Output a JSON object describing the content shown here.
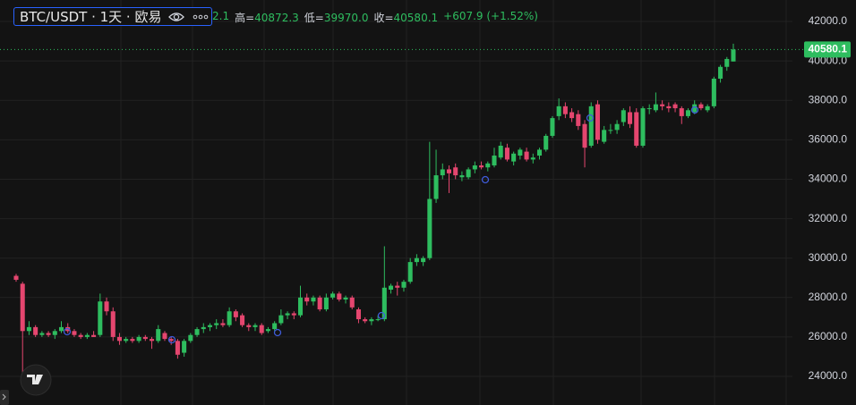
{
  "chart_data": {
    "type": "candlestick",
    "title": "BTC/USDT · 1天 · 欧易",
    "open_fragment": "2.1",
    "stats": [
      {
        "label": "高=",
        "value": "40872.3"
      },
      {
        "label": "低=",
        "value": "39970.0"
      },
      {
        "label": "收=",
        "value": "40580.1"
      }
    ],
    "change": "+607.9 (+1.52%)",
    "up_color": "#2ebd5f",
    "down_color": "#e5466f",
    "grid": true,
    "ylim": [
      22550,
      43090
    ],
    "yticks": [
      {
        "value": 24000,
        "label": "24000.0"
      },
      {
        "value": 26000,
        "label": "26000.0"
      },
      {
        "value": 28000,
        "label": "28000.0"
      },
      {
        "value": 30000,
        "label": "30000.0"
      },
      {
        "value": 32000,
        "label": "32000.0"
      },
      {
        "value": 34000,
        "label": "34000.0"
      },
      {
        "value": 36000,
        "label": "36000.0"
      },
      {
        "value": 38000,
        "label": "38000.0"
      },
      {
        "value": 40000,
        "label": "40000.0"
      },
      {
        "value": 42000,
        "label": "42000.0"
      }
    ],
    "last_price": 40580.1,
    "open": [
      29100,
      28700,
      26300,
      26500,
      26100,
      26200,
      26100,
      26300,
      26500,
      26300,
      26100,
      26000,
      26100,
      26100,
      27800,
      27300,
      26000,
      25800,
      25900,
      25800,
      26000,
      25900,
      25800,
      26200,
      25900,
      25800,
      25200,
      25800,
      26100,
      26400,
      26500,
      26600,
      26700,
      26600,
      27300,
      27100,
      26600,
      26500,
      26600,
      26300,
      26400,
      26700,
      27100,
      27200,
      27100,
      28000,
      27800,
      28000,
      27400,
      28000,
      28200,
      27900,
      28000,
      27400,
      26900,
      26800,
      26900,
      26900,
      28400,
      28600,
      28500,
      28800,
      29800,
      29800,
      30000,
      33000,
      34200,
      34500,
      34600,
      34100,
      34100,
      34500,
      34700,
      34600,
      34700,
      35100,
      35600,
      34900,
      35200,
      35400,
      35000,
      35200,
      35500,
      36200,
      37200,
      37700,
      37400,
      37300,
      36800,
      35700,
      37800,
      35900,
      36500,
      36500,
      36900,
      37400,
      37400,
      35700,
      37600,
      37500,
      37800,
      37700,
      37800,
      37600,
      37200,
      37400,
      37800,
      37500,
      37700,
      39100,
      39700,
      39972.1
    ],
    "high": [
      29200,
      28800,
      26800,
      26600,
      26300,
      26300,
      26400,
      26800,
      26700,
      26400,
      26200,
      26200,
      26300,
      28200,
      28000,
      27500,
      26200,
      26000,
      26000,
      26100,
      26100,
      26000,
      26600,
      26300,
      26000,
      25900,
      25900,
      26200,
      26500,
      26700,
      26700,
      26900,
      26900,
      27500,
      27400,
      27200,
      26700,
      26700,
      26700,
      26500,
      26800,
      27400,
      27300,
      27300,
      28600,
      28200,
      28100,
      28100,
      28200,
      28300,
      28300,
      28100,
      28100,
      27500,
      27000,
      27000,
      27100,
      30600,
      28700,
      28800,
      28900,
      30000,
      30200,
      30100,
      35900,
      35500,
      34800,
      34700,
      34800,
      34400,
      34600,
      34900,
      34900,
      34900,
      35600,
      35900,
      35800,
      35400,
      35600,
      35600,
      35300,
      35600,
      36300,
      37200,
      38100,
      37900,
      37600,
      37500,
      37000,
      37900,
      38000,
      36700,
      36800,
      37000,
      37600,
      37700,
      37600,
      37700,
      37800,
      38400,
      38000,
      37900,
      37900,
      37700,
      37600,
      38000,
      37900,
      37800,
      39200,
      39800,
      40200,
      40872.3
    ],
    "low": [
      28800,
      24200,
      26100,
      26000,
      26000,
      26000,
      25900,
      26200,
      26200,
      26000,
      25900,
      25900,
      26000,
      26000,
      27100,
      25800,
      25600,
      25700,
      25700,
      25700,
      25800,
      25400,
      25700,
      25800,
      25600,
      24900,
      25000,
      25700,
      26000,
      26200,
      26300,
      26400,
      26500,
      26500,
      26800,
      26500,
      26300,
      26300,
      26100,
      26200,
      26300,
      26600,
      26900,
      26900,
      27000,
      27600,
      27600,
      27300,
      27300,
      27900,
      27800,
      27700,
      27400,
      26700,
      26700,
      26600,
      26800,
      26800,
      28200,
      28100,
      28300,
      28700,
      29600,
      29600,
      29900,
      32800,
      34000,
      33300,
      34000,
      33900,
      34000,
      34300,
      34500,
      34400,
      34600,
      35000,
      34900,
      34700,
      35000,
      34900,
      34800,
      35000,
      35400,
      36100,
      37000,
      37100,
      36900,
      36500,
      34600,
      35600,
      35800,
      35800,
      36300,
      36300,
      36700,
      36600,
      35600,
      35600,
      37300,
      37400,
      37500,
      37400,
      37400,
      36800,
      37100,
      37300,
      37500,
      37400,
      37600,
      38900,
      39500,
      39970
    ],
    "close": [
      28900,
      26300,
      26500,
      26100,
      26200,
      26100,
      26300,
      26500,
      26300,
      26100,
      26000,
      26100,
      26000,
      27800,
      27300,
      26000,
      25800,
      25900,
      25800,
      26000,
      25900,
      25800,
      26400,
      25900,
      25800,
      25100,
      25800,
      26100,
      26400,
      26500,
      26600,
      26700,
      26600,
      27300,
      27000,
      26600,
      26500,
      26600,
      26200,
      26400,
      26700,
      27100,
      27200,
      27100,
      28000,
      27800,
      28000,
      27400,
      28000,
      28200,
      27900,
      28000,
      27500,
      26900,
      26800,
      26900,
      26900,
      28500,
      28600,
      28500,
      28800,
      29800,
      30000,
      30000,
      33000,
      34200,
      34500,
      34300,
      34200,
      34200,
      34500,
      34700,
      34600,
      34800,
      35200,
      35700,
      35000,
      35300,
      35500,
      35000,
      35100,
      35500,
      36200,
      37100,
      37700,
      37300,
      37100,
      36700,
      35600,
      37700,
      36000,
      36500,
      36500,
      36800,
      37500,
      36800,
      35700,
      37600,
      37600,
      37800,
      37700,
      37600,
      37600,
      37200,
      37500,
      37800,
      37600,
      37700,
      39100,
      39700,
      40100,
      40580.1
    ]
  }
}
